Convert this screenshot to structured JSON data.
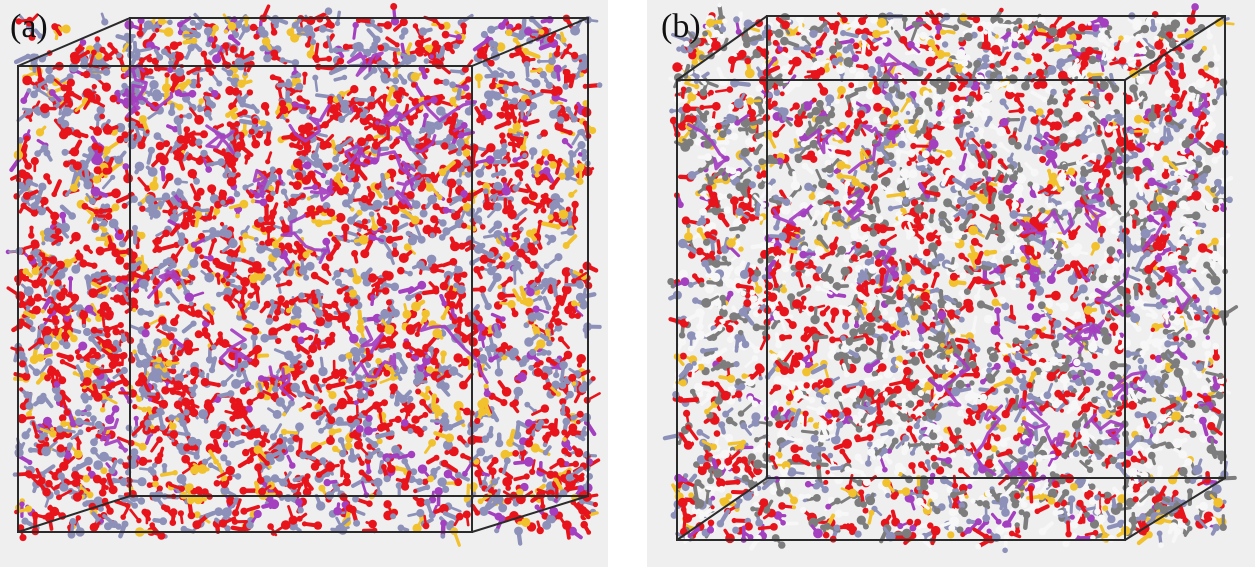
{
  "figure": {
    "panels": [
      {
        "label": "(a)"
      },
      {
        "label": "(b)"
      }
    ]
  },
  "colors": {
    "background": "#efefef",
    "box_edges": "#2b2b2b",
    "oxygen_like": "#e8141c",
    "nitrogen_like": "#8d90b8",
    "sulfur_like": "#f2c12e",
    "polymer_chain": "#a43fc0",
    "carbon_like": "#7d7d7d",
    "hydrogen_like": "#f7f7f7"
  }
}
